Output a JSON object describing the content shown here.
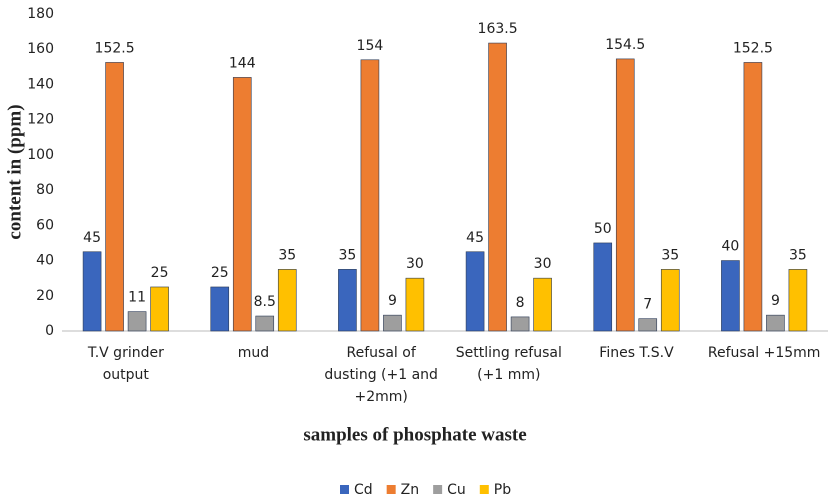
{
  "chart_data": {
    "type": "bar",
    "x_label": "samples of phosphate waste",
    "y_label": "content in (ppm)",
    "categories": [
      "T.V grinder output",
      "mud",
      "Refusal of dusting (+1 and +2mm)",
      "Settling refusal (+1 mm)",
      "Fines T.S.V",
      "Refusal +15mm"
    ],
    "series": [
      {
        "name": "Cd",
        "color": "#3a66bd",
        "values": [
          45,
          25,
          35,
          45,
          50,
          40
        ]
      },
      {
        "name": "Zn",
        "color": "#ed7d31",
        "values": [
          152.5,
          144,
          154,
          163.5,
          154.5,
          152.5
        ]
      },
      {
        "name": "Cu",
        "color": "#9e9e9e",
        "values": [
          11,
          8.5,
          9,
          8,
          7,
          9
        ]
      },
      {
        "name": "Pb",
        "color": "#ffc000",
        "values": [
          25,
          35,
          30,
          30,
          35,
          35
        ]
      }
    ],
    "ylim": [
      0,
      180
    ],
    "yticks": [
      0,
      20,
      40,
      60,
      80,
      100,
      120,
      140,
      160,
      180
    ],
    "grid": false,
    "legend": "bottom"
  }
}
